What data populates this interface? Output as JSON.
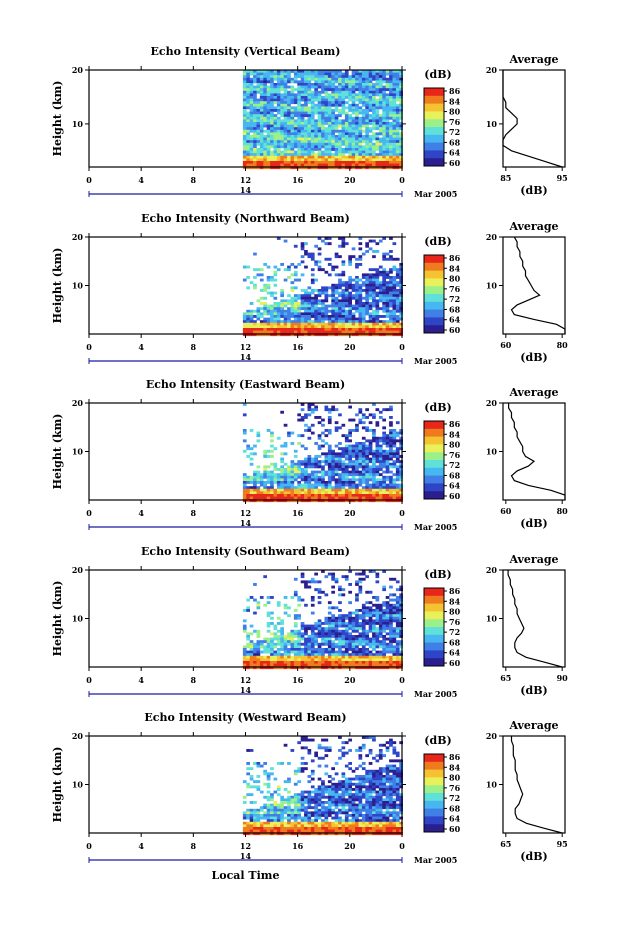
{
  "colors": {
    "scale": [
      "#2b1f8f",
      "#2f45c8",
      "#3f7fe6",
      "#46b7f0",
      "#5fe0d8",
      "#9cf08a",
      "#e8f05a",
      "#f5c232",
      "#f07a1e",
      "#e8261a"
    ],
    "line": "#000000",
    "time_axis": "#1a1aa0"
  },
  "chart_data": [
    {
      "type": "heatmap",
      "title": "Echo Intensity (Vertical Beam)",
      "ylabel": "Height (km)",
      "yticks": [
        "20",
        "10"
      ],
      "ylim": [
        2,
        20
      ],
      "xticks": [
        "0",
        "4",
        "8",
        "12",
        "16",
        "20",
        "0"
      ],
      "xlim": [
        0,
        24
      ],
      "data_start_hour": 11.8,
      "date_day": "14",
      "date_label": "Mar 2005",
      "colorbar": {
        "unit": "(dB)",
        "ticks": [
          "86",
          "84",
          "80",
          "76",
          "72",
          "68",
          "64",
          "60"
        ]
      },
      "profile": {
        "title": "Average",
        "xlabel": "(dB)",
        "xticks": [
          "85",
          "95"
        ],
        "yticks": [
          "20",
          "10"
        ],
        "heights": [
          2,
          3,
          4,
          5,
          6,
          7,
          8,
          9,
          10,
          11,
          12,
          13,
          14,
          15,
          16,
          17,
          18,
          19,
          20
        ],
        "values": [
          95,
          92,
          89,
          86,
          84,
          84,
          85,
          86,
          87,
          87,
          86,
          85,
          85,
          84,
          84,
          84,
          84,
          84,
          84
        ]
      }
    },
    {
      "type": "heatmap",
      "title": "Echo Intensity (Northward Beam)",
      "ylabel": "Height (km)",
      "yticks": [
        "20",
        "10"
      ],
      "ylim": [
        0,
        20
      ],
      "xticks": [
        "0",
        "4",
        "8",
        "12",
        "16",
        "20",
        "0"
      ],
      "xlim": [
        0,
        24
      ],
      "data_start_hour": 11.8,
      "date_day": "14",
      "date_label": "Mar 2005",
      "colorbar": {
        "unit": "(dB)",
        "ticks": [
          "86",
          "84",
          "80",
          "76",
          "72",
          "68",
          "64",
          "60"
        ]
      },
      "profile": {
        "title": "Average",
        "xlabel": "(dB)",
        "xticks": [
          "60",
          "80"
        ],
        "yticks": [
          "20",
          "10"
        ],
        "heights": [
          0,
          1,
          2,
          3,
          4,
          5,
          6,
          7,
          8,
          9,
          10,
          11,
          12,
          13,
          14,
          15,
          16,
          17,
          18,
          19,
          20
        ],
        "values": [
          95,
          88,
          78,
          70,
          63,
          62,
          64,
          68,
          72,
          70,
          69,
          68,
          67,
          67,
          66,
          66,
          65,
          65,
          64,
          64,
          63
        ]
      }
    },
    {
      "type": "heatmap",
      "title": "Echo Intensity (Eastward Beam)",
      "ylabel": "Height (km)",
      "yticks": [
        "20",
        "10"
      ],
      "ylim": [
        0,
        20
      ],
      "xticks": [
        "0",
        "4",
        "8",
        "12",
        "16",
        "20",
        "0"
      ],
      "xlim": [
        0,
        24
      ],
      "data_start_hour": 11.8,
      "date_day": "14",
      "date_label": "Mar 2005",
      "colorbar": {
        "unit": "(dB)",
        "ticks": [
          "86",
          "84",
          "80",
          "76",
          "72",
          "68",
          "64",
          "60"
        ]
      },
      "profile": {
        "title": "Average",
        "xlabel": "(dB)",
        "xticks": [
          "60",
          "80"
        ],
        "yticks": [
          "20",
          "10"
        ],
        "heights": [
          0,
          1,
          2,
          3,
          4,
          5,
          6,
          7,
          8,
          9,
          10,
          11,
          12,
          13,
          14,
          15,
          16,
          17,
          18,
          19,
          20
        ],
        "values": [
          92,
          85,
          76,
          68,
          63,
          62,
          64,
          68,
          70,
          67,
          66,
          66,
          65,
          64,
          64,
          63,
          63,
          62,
          62,
          61,
          61
        ]
      }
    },
    {
      "type": "heatmap",
      "title": "Echo Intensity (Southward Beam)",
      "ylabel": "Height (km)",
      "yticks": [
        "20",
        "10"
      ],
      "ylim": [
        0,
        20
      ],
      "xticks": [
        "0",
        "4",
        "8",
        "12",
        "16",
        "20",
        "0"
      ],
      "xlim": [
        0,
        24
      ],
      "data_start_hour": 11.8,
      "date_day": "14",
      "date_label": "Mar 2005",
      "colorbar": {
        "unit": "(dB)",
        "ticks": [
          "86",
          "84",
          "80",
          "76",
          "72",
          "68",
          "64",
          "60"
        ]
      },
      "profile": {
        "title": "Average",
        "xlabel": "(dB)",
        "xticks": [
          "65",
          "90"
        ],
        "yticks": [
          "20",
          "10"
        ],
        "heights": [
          0,
          1,
          2,
          3,
          4,
          5,
          6,
          7,
          8,
          9,
          10,
          11,
          12,
          13,
          14,
          15,
          16,
          17,
          18,
          19,
          20
        ],
        "values": [
          90,
          82,
          74,
          70,
          69,
          69,
          70,
          72,
          73,
          72,
          71,
          70,
          70,
          69,
          69,
          68,
          68,
          67,
          67,
          66,
          66
        ]
      }
    },
    {
      "type": "heatmap",
      "title": "Echo Intensity (Westward Beam)",
      "ylabel": "Height (km)",
      "yticks": [
        "20",
        "10"
      ],
      "ylim": [
        0,
        20
      ],
      "xticks": [
        "0",
        "4",
        "8",
        "12",
        "16",
        "20",
        "0"
      ],
      "xlim": [
        0,
        24
      ],
      "data_start_hour": 11.8,
      "date_day": "14",
      "date_label": "Mar 2005",
      "xlabel": "Local Time",
      "colorbar": {
        "unit": "(dB)",
        "ticks": [
          "86",
          "84",
          "80",
          "76",
          "72",
          "68",
          "64",
          "60"
        ]
      },
      "profile": {
        "title": "Average",
        "xlabel": "(dB)",
        "xticks": [
          "65",
          "95"
        ],
        "yticks": [
          "20",
          "10"
        ],
        "heights": [
          0,
          1,
          2,
          3,
          4,
          5,
          6,
          7,
          8,
          9,
          10,
          11,
          12,
          13,
          14,
          15,
          16,
          17,
          18,
          19,
          20
        ],
        "values": [
          95,
          85,
          76,
          71,
          70,
          70,
          72,
          73,
          74,
          73,
          72,
          71,
          71,
          70,
          70,
          70,
          69,
          69,
          69,
          68,
          68
        ]
      }
    }
  ]
}
